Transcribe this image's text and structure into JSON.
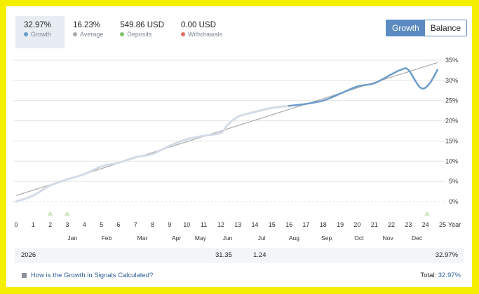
{
  "stats": [
    {
      "value": "32.97%",
      "label": "Growth",
      "dot_color": "#6a9cc9"
    },
    {
      "value": "16.23%",
      "label": "Average",
      "dot_color": "#aaaaaa"
    },
    {
      "value": "549.86 USD",
      "label": "Deposits",
      "dot_color": "#7fbf6a"
    },
    {
      "value": "0.00 USD",
      "label": "Withdrawals",
      "dot_color": "#e07060"
    }
  ],
  "toggle": {
    "growth_label": "Growth",
    "balance_label": "Balance",
    "active": "Growth"
  },
  "summary": {
    "year": "2026",
    "jun": "31.35",
    "jul": "1.24",
    "year_total": "32.97%"
  },
  "footer": {
    "link": "How is the Growth in Signals Calculated?",
    "total_label": "Total:",
    "total_value": "32.97%"
  },
  "chart_data": {
    "type": "line",
    "xlabel": "Year",
    "x_ticks": [
      "0",
      "1",
      "2",
      "3",
      "4",
      "5",
      "6",
      "7",
      "8",
      "9",
      "10",
      "11",
      "12",
      "13",
      "14",
      "15",
      "16",
      "17",
      "18",
      "19",
      "20",
      "21",
      "22",
      "23",
      "24",
      "25"
    ],
    "month_labels": [
      "Jan",
      "Feb",
      "Mar",
      "Apr",
      "May",
      "Jun",
      "Jul",
      "Aug",
      "Sep",
      "Oct",
      "Nov",
      "Dec"
    ],
    "y_ticks": [
      "35%",
      "30%",
      "25%",
      "20%",
      "15%",
      "10%",
      "5%",
      "0%"
    ],
    "ylim": [
      -3,
      36
    ],
    "xlim": [
      0,
      25
    ],
    "colors": {
      "growth": "#6a9cc9",
      "history": "#d3dbe7",
      "trend": "#aaaaaa",
      "deposit_marker": "#c9e6b8"
    },
    "series": [
      {
        "x": [
          0,
          1,
          2,
          3,
          4,
          5,
          6,
          7,
          8,
          9,
          10,
          11,
          12,
          12.4,
          13,
          14,
          15,
          16
        ],
        "values": [
          0,
          1.5,
          4,
          5.5,
          6.8,
          8.7,
          9.6,
          11,
          11.8,
          13.8,
          15.4,
          16.3,
          17,
          19,
          21,
          22.2,
          23.2,
          23.7
        ]
      },
      {
        "x": [
          16,
          17,
          18,
          19,
          20,
          21,
          22,
          22.6,
          23,
          23.7,
          24.2,
          24.7
        ],
        "values": [
          23.7,
          24.2,
          25,
          26.7,
          28.5,
          29.3,
          31.5,
          32.7,
          32.6,
          28.2,
          29,
          32.6
        ]
      }
    ],
    "trend": {
      "x": [
        0,
        24.7
      ],
      "values": [
        1.5,
        34.4
      ]
    },
    "deposit_markers_x": [
      2,
      3,
      24.1
    ]
  }
}
